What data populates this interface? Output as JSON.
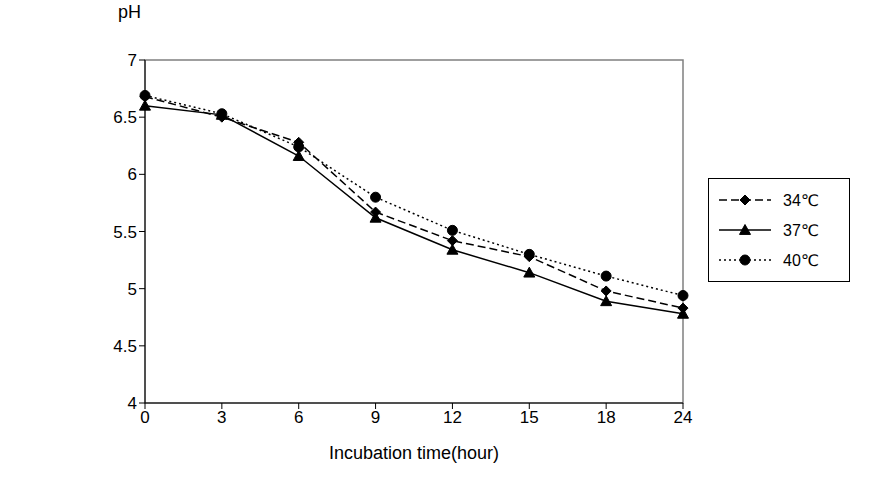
{
  "chart_data": {
    "type": "line",
    "x_label": "Incubation time(hour)",
    "y_label": "pH",
    "categories": [
      "0",
      "3",
      "6",
      "9",
      "12",
      "15",
      "18",
      "24"
    ],
    "series": [
      {
        "name": "34℃",
        "color": "#000000",
        "marker": "diamond",
        "line_style": "dashed",
        "values": [
          6.68,
          6.5,
          6.28,
          5.67,
          5.42,
          5.28,
          4.98,
          4.83
        ]
      },
      {
        "name": "37℃",
        "color": "#000000",
        "marker": "triangle",
        "line_style": "solid",
        "values": [
          6.6,
          6.52,
          6.16,
          5.62,
          5.34,
          5.14,
          4.89,
          4.78
        ]
      },
      {
        "name": "40℃",
        "color": "#000000",
        "marker": "circle",
        "line_style": "dotted",
        "values": [
          6.69,
          6.53,
          6.24,
          5.8,
          5.51,
          5.3,
          5.11,
          4.94
        ]
      }
    ],
    "ylim": [
      4,
      7
    ],
    "yticks": [
      4,
      4.5,
      5,
      5.5,
      6,
      6.5,
      7
    ],
    "grid": false,
    "legend": "right"
  }
}
